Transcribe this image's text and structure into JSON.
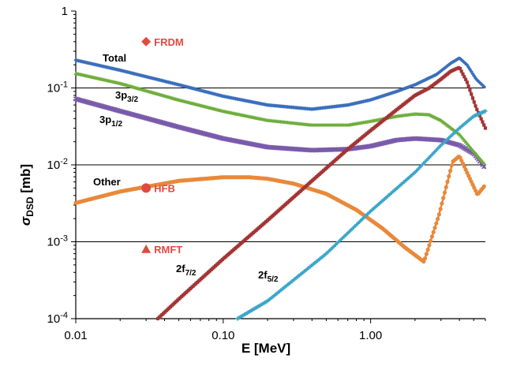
{
  "chart_data": {
    "type": "line",
    "xscale": "log",
    "yscale": "log",
    "xlabel": "E [MeV]",
    "ylabel_main": "σ",
    "ylabel_sub": "DSD",
    "ylabel_unit": " [mb]",
    "xlim": [
      0.01,
      6
    ],
    "ylim": [
      0.0001,
      1
    ],
    "grid": "horizontal at 1e-3, 1e-2, 1e-1",
    "x_ticks": [
      {
        "value": 0.01,
        "label": "0.01"
      },
      {
        "value": 0.1,
        "label": "0.10"
      },
      {
        "value": 1,
        "label": "1.00"
      }
    ],
    "y_ticks": [
      {
        "value": 1,
        "base": "1",
        "exp": ""
      },
      {
        "value": 0.1,
        "base": "10",
        "exp": "-1"
      },
      {
        "value": 0.01,
        "base": "10",
        "exp": "-2"
      },
      {
        "value": 0.001,
        "base": "10",
        "exp": "-3"
      },
      {
        "value": 0.0001,
        "base": "10",
        "exp": "-4"
      }
    ],
    "series": [
      {
        "label_main": "Total",
        "label_sub": "",
        "color": "#3b6fbd",
        "marker": "diamond",
        "points": [
          [
            0.01,
            0.23
          ],
          [
            0.02,
            0.17
          ],
          [
            0.05,
            0.11
          ],
          [
            0.1,
            0.078
          ],
          [
            0.2,
            0.06
          ],
          [
            0.4,
            0.053
          ],
          [
            0.7,
            0.06
          ],
          [
            1.0,
            0.07
          ],
          [
            1.5,
            0.09
          ],
          [
            2.0,
            0.11
          ],
          [
            2.8,
            0.15
          ],
          [
            3.5,
            0.21
          ],
          [
            4.0,
            0.245
          ],
          [
            4.5,
            0.2
          ],
          [
            5.2,
            0.13
          ],
          [
            6.0,
            0.1
          ]
        ]
      },
      {
        "label_main": "3p",
        "label_sub": "3/2",
        "color": "#6fae3e",
        "marker": "triangle",
        "points": [
          [
            0.01,
            0.155
          ],
          [
            0.02,
            0.115
          ],
          [
            0.05,
            0.07
          ],
          [
            0.1,
            0.05
          ],
          [
            0.2,
            0.038
          ],
          [
            0.4,
            0.033
          ],
          [
            0.7,
            0.033
          ],
          [
            1.0,
            0.037
          ],
          [
            1.5,
            0.043
          ],
          [
            2.0,
            0.046
          ],
          [
            2.5,
            0.045
          ],
          [
            3.0,
            0.038
          ],
          [
            4.0,
            0.025
          ],
          [
            5.0,
            0.015
          ],
          [
            6.0,
            0.01
          ]
        ]
      },
      {
        "label_main": "3p",
        "label_sub": "1/2",
        "color": "#7a5aaa",
        "marker": "x",
        "points": [
          [
            0.01,
            0.072
          ],
          [
            0.02,
            0.05
          ],
          [
            0.05,
            0.031
          ],
          [
            0.1,
            0.022
          ],
          [
            0.2,
            0.017
          ],
          [
            0.4,
            0.0155
          ],
          [
            0.7,
            0.016
          ],
          [
            1.0,
            0.0175
          ],
          [
            1.5,
            0.021
          ],
          [
            2.0,
            0.022
          ],
          [
            3.0,
            0.021
          ],
          [
            4.0,
            0.018
          ],
          [
            5.0,
            0.014
          ],
          [
            6.0,
            0.009
          ]
        ]
      },
      {
        "label_main": "Other",
        "label_sub": "",
        "color": "#e8893a",
        "marker": "circle",
        "points": [
          [
            0.01,
            0.0032
          ],
          [
            0.02,
            0.0045
          ],
          [
            0.05,
            0.0062
          ],
          [
            0.1,
            0.0069
          ],
          [
            0.15,
            0.0069
          ],
          [
            0.2,
            0.0066
          ],
          [
            0.3,
            0.0057
          ],
          [
            0.5,
            0.0042
          ],
          [
            0.8,
            0.0026
          ],
          [
            1.2,
            0.0015
          ],
          [
            1.7,
            0.00085
          ],
          [
            2.3,
            0.00055
          ],
          [
            2.9,
            0.0022
          ],
          [
            3.6,
            0.011
          ],
          [
            4.0,
            0.013
          ],
          [
            4.5,
            0.008
          ],
          [
            5.3,
            0.0041
          ],
          [
            6.0,
            0.0055
          ]
        ]
      },
      {
        "label_main": "2f",
        "label_sub": "7/2",
        "color": "#a23434",
        "marker": "square",
        "points": [
          [
            0.036,
            0.0001
          ],
          [
            0.05,
            0.00018
          ],
          [
            0.1,
            0.0006
          ],
          [
            0.2,
            0.0019
          ],
          [
            0.4,
            0.0062
          ],
          [
            0.7,
            0.016
          ],
          [
            1.0,
            0.028
          ],
          [
            1.5,
            0.052
          ],
          [
            2.0,
            0.08
          ],
          [
            2.5,
            0.1
          ],
          [
            3.0,
            0.13
          ],
          [
            3.5,
            0.165
          ],
          [
            4.0,
            0.185
          ],
          [
            4.5,
            0.12
          ],
          [
            5.2,
            0.055
          ],
          [
            6.0,
            0.03
          ]
        ]
      },
      {
        "label_main": "2f",
        "label_sub": "5/2",
        "color": "#3aa6c9",
        "marker": "plus",
        "points": [
          [
            0.125,
            0.0001
          ],
          [
            0.2,
            0.00017
          ],
          [
            0.5,
            0.0007
          ],
          [
            1.0,
            0.0025
          ],
          [
            2.0,
            0.008
          ],
          [
            3.0,
            0.018
          ],
          [
            4.0,
            0.03
          ],
          [
            5.0,
            0.043
          ],
          [
            6.0,
            0.05
          ]
        ]
      }
    ],
    "points": [
      {
        "name": "FRDM",
        "x": 0.03,
        "y": 0.4,
        "marker": "diamond",
        "color": "#e04b3f"
      },
      {
        "name": "HFB",
        "x": 0.03,
        "y": 0.005,
        "marker": "circle",
        "color": "#e04b3f"
      },
      {
        "name": "RMFT",
        "x": 0.03,
        "y": 0.0008,
        "marker": "triangle",
        "color": "#e04b3f"
      }
    ]
  }
}
